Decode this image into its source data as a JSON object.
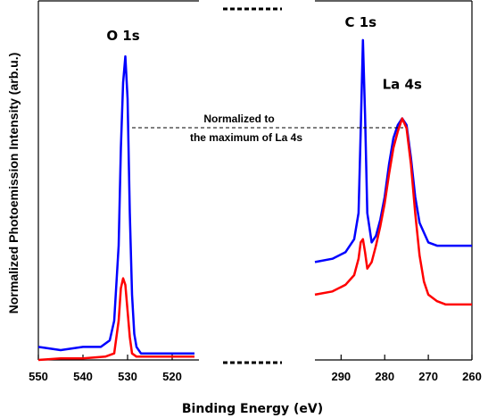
{
  "chart_data": {
    "type": "line",
    "xlabel": "Binding Energy (eV)",
    "ylabel": "Normalized Photoemission Intensity (arb.u.)",
    "ylim": [
      0,
      1.1
    ],
    "grid": false,
    "axis_break": true,
    "colors": {
      "blue": "#0000ff",
      "red": "#ff0000"
    },
    "panels": [
      {
        "name": "left",
        "xlim": [
          550,
          514
        ],
        "reversed": true,
        "ticks": [
          550,
          540,
          530,
          520
        ],
        "tick_labels": [
          "550",
          "540",
          "530",
          "520"
        ],
        "series": [
          {
            "color": "#0000ff",
            "x": [
              550,
              545,
              540,
              536,
              534,
              533,
              532,
              531.5,
              531,
              530.5,
              530,
              529.5,
              529,
              528.5,
              528,
              527,
              525,
              520,
              515
            ],
            "y": [
              0.04,
              0.03,
              0.04,
              0.04,
              0.06,
              0.12,
              0.35,
              0.65,
              0.85,
              0.93,
              0.8,
              0.45,
              0.2,
              0.08,
              0.04,
              0.02,
              0.02,
              0.02,
              0.02
            ]
          },
          {
            "color": "#ff0000",
            "x": [
              550,
              545,
              540,
              535,
              533,
              532,
              531.5,
              531,
              530.5,
              530,
              529.5,
              529,
              528,
              525,
              520,
              515
            ],
            "y": [
              0.0,
              0.005,
              0.005,
              0.01,
              0.02,
              0.12,
              0.22,
              0.25,
              0.23,
              0.15,
              0.07,
              0.02,
              0.01,
              0.01,
              0.01,
              0.01
            ]
          }
        ],
        "labels": [
          {
            "text": "O 1s",
            "x": 531,
            "y": 0.98
          }
        ]
      },
      {
        "name": "right",
        "xlim": [
          296,
          260
        ],
        "reversed": true,
        "ticks": [
          290,
          280,
          270,
          260
        ],
        "tick_labels": [
          "290",
          "280",
          "270",
          "260"
        ],
        "series": [
          {
            "color": "#0000ff",
            "x": [
              296,
              292,
              289,
              287,
              286,
              285.5,
              285,
              284.5,
              284,
              283,
              282,
              281,
              280,
              279,
              278,
              277,
              276,
              275,
              274,
              273,
              272,
              270,
              268,
              266,
              264,
              262,
              260
            ],
            "y": [
              0.3,
              0.31,
              0.33,
              0.37,
              0.45,
              0.7,
              0.98,
              0.75,
              0.45,
              0.36,
              0.38,
              0.43,
              0.5,
              0.6,
              0.68,
              0.72,
              0.74,
              0.72,
              0.62,
              0.5,
              0.42,
              0.36,
              0.35,
              0.35,
              0.35,
              0.35,
              0.35
            ]
          },
          {
            "color": "#ff0000",
            "x": [
              296,
              292,
              289,
              287,
              286,
              285.5,
              285,
              284.5,
              284,
              283,
              282,
              281,
              280,
              279,
              278,
              277,
              276,
              275,
              274,
              273,
              272,
              271,
              270,
              268,
              266,
              264,
              262,
              260
            ],
            "y": [
              0.2,
              0.21,
              0.23,
              0.26,
              0.31,
              0.36,
              0.37,
              0.33,
              0.28,
              0.3,
              0.35,
              0.41,
              0.48,
              0.57,
              0.65,
              0.7,
              0.74,
              0.71,
              0.6,
              0.45,
              0.32,
              0.24,
              0.2,
              0.18,
              0.17,
              0.17,
              0.17,
              0.17
            ]
          }
        ],
        "labels": [
          {
            "text": "C 1s",
            "x": 285.5,
            "y": 1.02
          },
          {
            "text": "La 4s",
            "x": 276,
            "y": 0.83
          }
        ]
      }
    ],
    "annotation": {
      "lines": [
        "Normalized to",
        "the maximum of La 4s"
      ]
    }
  }
}
